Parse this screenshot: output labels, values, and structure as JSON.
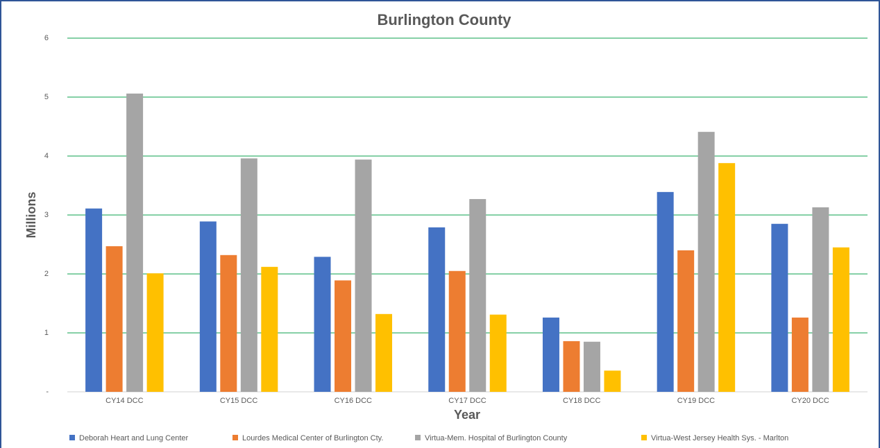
{
  "chart_data": {
    "type": "bar",
    "title": "Burlington County",
    "xlabel": "Year",
    "ylabel": "Millions",
    "categories": [
      "CY14 DCC",
      "CY15 DCC",
      "CY16 DCC",
      "CY17 DCC",
      "CY18 DCC",
      "CY19 DCC",
      "CY20 DCC"
    ],
    "series": [
      {
        "name": "Deborah Heart and Lung Center",
        "color": "#4472c4",
        "values": [
          3.11,
          2.89,
          2.29,
          2.79,
          1.26,
          3.39,
          2.85
        ]
      },
      {
        "name": "Lourdes Medical Center of Burlington Cty.",
        "color": "#ed7d31",
        "values": [
          2.47,
          2.32,
          1.89,
          2.05,
          0.86,
          2.4,
          1.26
        ]
      },
      {
        "name": "Virtua-Mem. Hospital of Burlington County",
        "color": "#a5a5a5",
        "values": [
          5.06,
          3.96,
          3.94,
          3.27,
          0.85,
          4.41,
          3.13
        ]
      },
      {
        "name": "Virtua-West Jersey Health Sys. - Marlton",
        "color": "#ffc000",
        "values": [
          2.01,
          2.12,
          1.32,
          1.31,
          0.36,
          3.88,
          2.45
        ]
      }
    ],
    "ylim": [
      0,
      6
    ],
    "yticks": [
      {
        "value": 0,
        "label": "-"
      },
      1,
      2,
      3,
      4,
      5,
      6
    ],
    "grid": true,
    "legend": "bottom"
  }
}
